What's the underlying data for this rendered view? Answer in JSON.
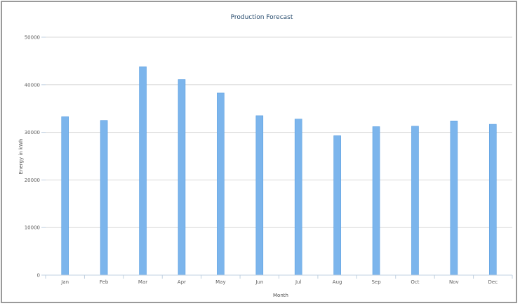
{
  "chart_data": {
    "type": "bar",
    "title": "Production Forecast",
    "xlabel": "Month",
    "ylabel": "Energy in kWh",
    "categories": [
      "Jan",
      "Feb",
      "Mar",
      "Apr",
      "May",
      "Jun",
      "Jul",
      "Aug",
      "Sep",
      "Oct",
      "Nov",
      "Dec"
    ],
    "series": [
      {
        "values": [
          33300,
          32500,
          43800,
          41100,
          38300,
          33500,
          32800,
          29300,
          31200,
          31300,
          32400,
          31700
        ]
      }
    ],
    "yticks": [
      0,
      10000,
      20000,
      30000,
      40000,
      50000
    ],
    "ylim": [
      0,
      50000
    ],
    "grid": true,
    "legend": "none",
    "colors": {
      "bar": "#7cb5ec",
      "bar_edge": "#5a9ee0",
      "title": "#274b6d"
    }
  }
}
